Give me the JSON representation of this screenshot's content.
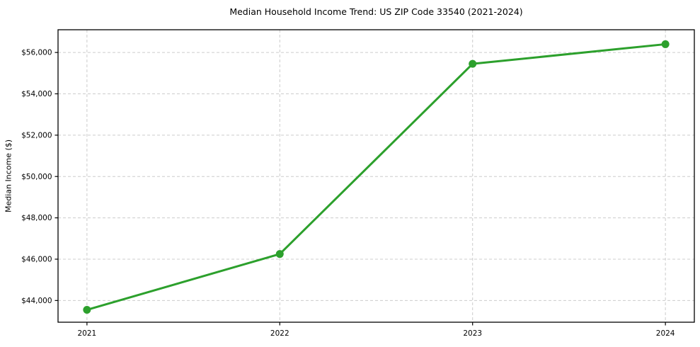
{
  "chart_data": {
    "type": "line",
    "title": "Median Household Income Trend: US ZIP Code 33540 (2021-2024)",
    "xlabel": "",
    "ylabel": "Median Income ($)",
    "x": [
      2021,
      2022,
      2023,
      2024
    ],
    "x_tick_labels": [
      "2021",
      "2022",
      "2023",
      "2024"
    ],
    "series": [
      {
        "name": "Median Household Income",
        "values": [
          43550,
          46250,
          55450,
          56400
        ]
      }
    ],
    "y_ticks": [
      44000,
      46000,
      48000,
      50000,
      52000,
      54000,
      56000
    ],
    "y_tick_labels": [
      "$44,000",
      "$46,000",
      "$48,000",
      "$50,000",
      "$52,000",
      "$54,000",
      "$56,000"
    ],
    "xlim": [
      2020.85,
      2024.15
    ],
    "ylim": [
      42950,
      57100
    ],
    "grid": true,
    "grid_style": "dashed",
    "legend": "none",
    "colors": {
      "line": "#2ca02c",
      "marker": "#2ca02c",
      "grid": "#cccccc",
      "spine": "#000000",
      "background": "#ffffff"
    }
  }
}
